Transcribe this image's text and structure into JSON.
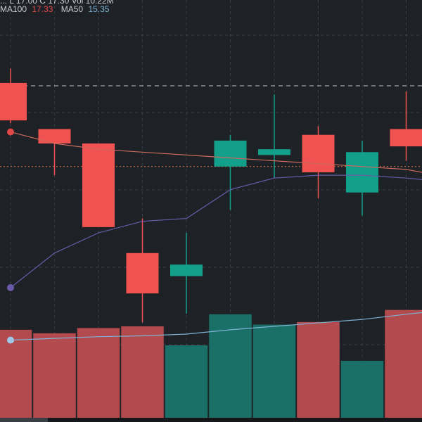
{
  "legend": {
    "topline": "  ...  L  17.00  C  17.30  Vol  10.22M",
    "ma100_label": "MA100",
    "ma100_value": "17.33",
    "ma50_label": "MA50",
    "ma50_value": "15.35"
  },
  "colors": {
    "background": "#1e2126",
    "grid": "#3a3d44",
    "bull": "#12a08a",
    "bear": "#f05252",
    "bull_volume": "#1a6f66",
    "bear_volume": "#b34a4d",
    "ma100": "#c96a5c",
    "ma50": "#6a5aa8",
    "volume_ma": "#7fb2d4",
    "reference_line": "#c2c2c2",
    "last_price_line": "#e07a4a",
    "ma100_marker": "#e04848",
    "ma50_marker": "#6a5aa8",
    "volume_ma_marker": "#9ec8e6"
  },
  "chart_data": {
    "type": "candlestick",
    "price_range": [
      10,
      22
    ],
    "candles": [
      {
        "open": 20.1,
        "high": 20.6,
        "low": 18.7,
        "close": 18.8
      },
      {
        "open": 18.5,
        "high": 18.5,
        "low": 16.9,
        "close": 18.0
      },
      {
        "open": 18.0,
        "high": 18.0,
        "low": 15.1,
        "close": 15.1
      },
      {
        "open": 14.2,
        "high": 15.4,
        "low": 11.8,
        "close": 12.8
      },
      {
        "open": 13.4,
        "high": 14.9,
        "low": 12.1,
        "close": 13.8
      },
      {
        "open": 17.2,
        "high": 18.3,
        "low": 15.7,
        "close": 18.1
      },
      {
        "open": 17.6,
        "high": 19.7,
        "low": 16.8,
        "close": 17.8
      },
      {
        "open": 18.3,
        "high": 18.6,
        "low": 16.1,
        "close": 17.0
      },
      {
        "open": 16.3,
        "high": 18.1,
        "low": 15.5,
        "close": 17.7
      },
      {
        "open": 18.5,
        "high": 19.8,
        "low": 17.4,
        "close": 17.9
      }
    ],
    "ma100": [
      18.4,
      18.0,
      17.8,
      17.7,
      17.6,
      17.5,
      17.4,
      17.3,
      17.2,
      17.1
    ],
    "ma50": [
      13.0,
      14.2,
      14.9,
      15.3,
      15.4,
      16.4,
      16.8,
      16.9,
      16.9,
      16.8
    ],
    "volumes": [
      10.2,
      9.8,
      10.4,
      10.6,
      8.4,
      12.0,
      10.8,
      11.1,
      6.6,
      12.5
    ],
    "volume_ma": [
      9.0,
      9.2,
      9.4,
      9.5,
      9.7,
      10.2,
      10.6,
      11.0,
      11.4,
      12.0
    ],
    "volume_range": [
      0,
      15
    ],
    "reference_price": 20.0,
    "last_price": 17.2
  }
}
